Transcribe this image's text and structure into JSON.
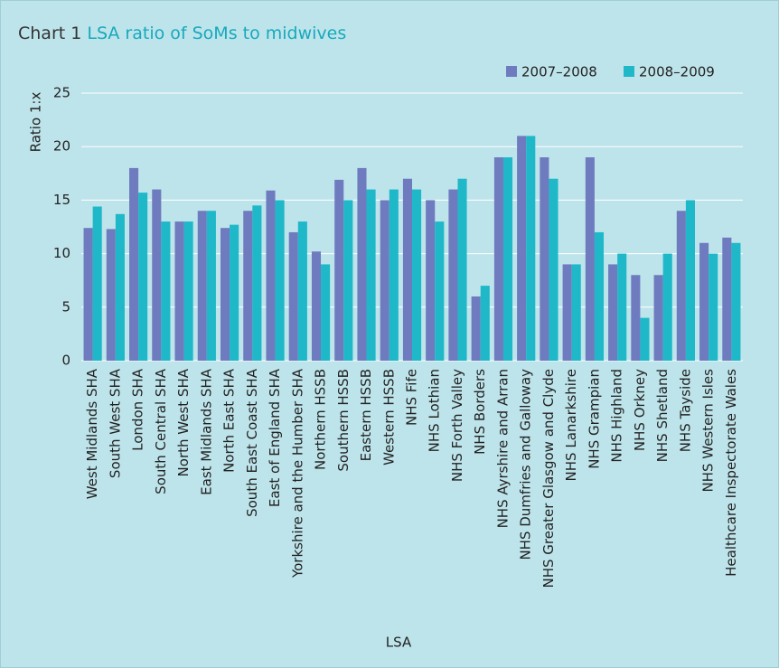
{
  "chart_data": {
    "type": "bar",
    "title_number": "Chart 1",
    "title": "LSA ratio of SoMs to midwives",
    "x_label": "LSA",
    "y_label": "Ratio 1:x",
    "categories": [
      "West Midlands SHA",
      "South West SHA",
      "London SHA",
      "South Central SHA",
      "North West SHA",
      "East Midlands SHA",
      "North East SHA",
      "South East Coast SHA",
      "East of England SHA",
      "Yorkshire and the Humber SHA",
      "Northern HSSB",
      "Southern HSSB",
      "Eastern HSSB",
      "Western HSSB",
      "NHS Fife",
      "NHS Lothian",
      "NHS Forth Valley",
      "NHS Borders",
      "NHS Ayrshire and Arran",
      "NHS Dumfries and Galloway",
      "NHS Greater Glasgow and Clyde",
      "NHS Lanarkshire",
      "NHS Grampian",
      "NHS Highland",
      "NHS Orkney",
      "NHS Shetland",
      "NHS Tayside",
      "NHS Western Isles",
      "Healthcare Inspectorate Wales"
    ],
    "series": [
      {
        "name": "2007–2008",
        "color": "#6f7bbf",
        "values": [
          12.4,
          12.3,
          18,
          16,
          13,
          14,
          12.4,
          14,
          15.9,
          12,
          10.2,
          16.9,
          18,
          15,
          17,
          15,
          16,
          6,
          19,
          21,
          19,
          9,
          19,
          9,
          8,
          8,
          14,
          11,
          11.5
        ]
      },
      {
        "name": "2008–2009",
        "color": "#1fb8c8",
        "values": [
          14.4,
          13.7,
          15.7,
          13,
          13,
          14,
          12.7,
          14.5,
          15,
          13,
          9,
          15,
          16,
          16,
          16,
          13,
          17,
          7,
          19,
          21,
          17,
          9,
          12,
          10,
          4,
          10,
          15,
          10,
          11
        ]
      }
    ],
    "ylim": [
      0,
      25
    ],
    "yticks": [
      0,
      5,
      10,
      15,
      20,
      25
    ],
    "grid": true,
    "legend": "top-right"
  }
}
